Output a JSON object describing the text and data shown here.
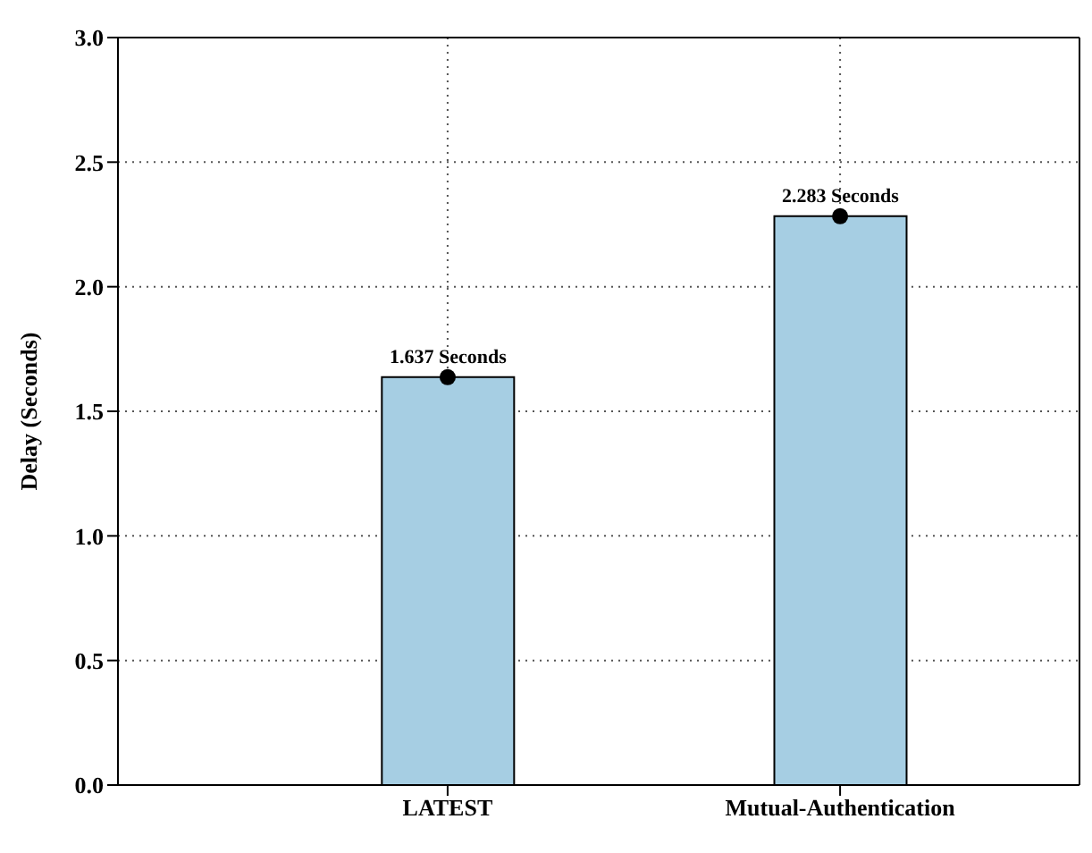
{
  "chart_data": {
    "type": "bar",
    "ylabel": "Delay (Seconds)",
    "categories": [
      "LATEST",
      "Mutual-Authentication"
    ],
    "series": [
      {
        "color": "#a6cee3",
        "values": [
          1.637,
          2.283
        ],
        "value_labels": [
          "1.637 Seconds",
          "2.283 Seconds"
        ]
      },
      {
        "type": "scatter",
        "color": "#000000",
        "x": [
          "LATEST",
          "Mutual-Authentication"
        ],
        "values": [
          1.637,
          2.283
        ]
      }
    ],
    "ylim": [
      0,
      3
    ],
    "yticks": [
      {
        "value": 0,
        "label": "0.0"
      },
      {
        "value": 0.5,
        "label": "0.5"
      },
      {
        "value": 1,
        "label": "1.0"
      },
      {
        "value": 1.5,
        "label": "1.5"
      },
      {
        "value": 2,
        "label": "2.0"
      },
      {
        "value": 2.5,
        "label": "2.5"
      },
      {
        "value": 3,
        "label": "3.0"
      }
    ],
    "grid": true,
    "marker": "circle"
  }
}
